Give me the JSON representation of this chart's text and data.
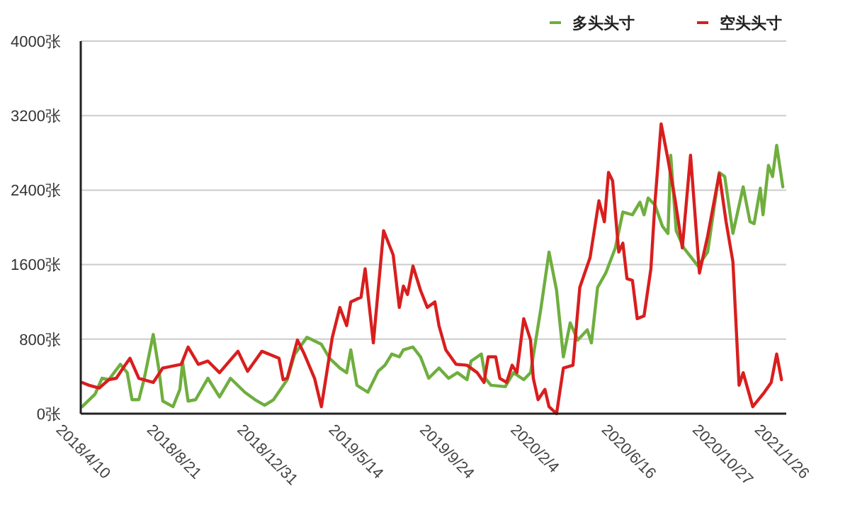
{
  "chart_data": {
    "type": "line",
    "legend": "top right",
    "grid": "y",
    "line_style": "solid",
    "marker": "none",
    "xlim": [
      "2018-04-10",
      "2021-02-05"
    ],
    "xticks": [
      {
        "value": "2018-04-10",
        "label": "2018/4/10"
      },
      {
        "value": "2018-08-21",
        "label": "2018/8/21"
      },
      {
        "value": "2018-12-31",
        "label": "2018/12/31"
      },
      {
        "value": "2019-05-14",
        "label": "2019/5/14"
      },
      {
        "value": "2019-09-24",
        "label": "2019/9/24"
      },
      {
        "value": "2020-02-04",
        "label": "2020/2/4"
      },
      {
        "value": "2020-06-16",
        "label": "2020/6/16"
      },
      {
        "value": "2020-10-27",
        "label": "2020/10/27"
      },
      {
        "value": "2021-01-26",
        "label": "2021/1/26"
      }
    ],
    "ylim": [
      0,
      4000
    ],
    "yticks": [
      {
        "value": 0,
        "label": "0张"
      },
      {
        "value": 800,
        "label": "800张"
      },
      {
        "value": 1600,
        "label": "1600张"
      },
      {
        "value": 2400,
        "label": "2400张"
      },
      {
        "value": 3200,
        "label": "3200张"
      },
      {
        "value": 4000,
        "label": "4000张"
      }
    ],
    "series": [
      {
        "name": "多头头寸",
        "color": "#6fae3f",
        "x": [
          "2018-04-12",
          "2018-05-01",
          "2018-05-11",
          "2018-05-21",
          "2018-06-07",
          "2018-06-17",
          "2018-06-24",
          "2018-07-04",
          "2018-07-12",
          "2018-07-25",
          "2018-08-02",
          "2018-08-08",
          "2018-08-23",
          "2018-09-02",
          "2018-09-06",
          "2018-09-14",
          "2018-09-25",
          "2018-10-13",
          "2018-10-30",
          "2018-11-15",
          "2018-12-06",
          "2018-12-21",
          "2019-01-04",
          "2019-01-17",
          "2019-02-06",
          "2019-02-17",
          "2019-03-07",
          "2019-03-28",
          "2019-04-09",
          "2019-04-24",
          "2019-05-04",
          "2019-05-10",
          "2019-05-19",
          "2019-06-04",
          "2019-06-19",
          "2019-06-29",
          "2019-07-09",
          "2019-07-20",
          "2019-07-26",
          "2019-08-09",
          "2019-08-20",
          "2019-09-01",
          "2019-09-16",
          "2019-09-30",
          "2019-10-13",
          "2019-10-27",
          "2019-11-02",
          "2019-11-17",
          "2019-11-23",
          "2019-12-01",
          "2019-12-22",
          "2020-01-03",
          "2020-01-18",
          "2020-01-28",
          "2020-02-12",
          "2020-02-24",
          "2020-03-06",
          "2020-03-16",
          "2020-03-26",
          "2020-04-06",
          "2020-04-20",
          "2020-04-26",
          "2020-05-05",
          "2020-05-17",
          "2020-05-31",
          "2020-06-11",
          "2020-06-25",
          "2020-07-06",
          "2020-07-12",
          "2020-07-18",
          "2020-07-28",
          "2020-08-08",
          "2020-08-16",
          "2020-08-20",
          "2020-08-28",
          "2020-09-08",
          "2020-09-29",
          "2020-10-13",
          "2020-10-30",
          "2020-11-07",
          "2020-11-19",
          "2020-12-04",
          "2020-12-14",
          "2020-12-20",
          "2020-12-29",
          "2021-01-02",
          "2021-01-10",
          "2021-01-16",
          "2021-01-22",
          "2021-01-31"
        ],
        "values": [
          75,
          210,
          380,
          365,
          530,
          440,
          150,
          150,
          380,
          850,
          490,
          135,
          75,
          260,
          550,
          135,
          150,
          380,
          180,
          380,
          230,
          150,
          90,
          150,
          365,
          640,
          820,
          745,
          595,
          490,
          440,
          685,
          305,
          230,
          455,
          520,
          640,
          610,
          685,
          715,
          610,
          380,
          490,
          380,
          440,
          365,
          565,
          640,
          380,
          305,
          290,
          440,
          365,
          440,
          1125,
          1735,
          1325,
          610,
          975,
          790,
          900,
          760,
          1355,
          1510,
          1780,
          2165,
          2135,
          2270,
          2135,
          2315,
          2240,
          2010,
          1935,
          2775,
          1965,
          1780,
          1585,
          1735,
          2590,
          2545,
          1935,
          2435,
          2060,
          2040,
          2420,
          2135,
          2665,
          2545,
          2880,
          2435
        ]
      },
      {
        "name": "空头头寸",
        "color": "#d91e1e",
        "x": [
          "2018-04-12",
          "2018-04-22",
          "2018-05-07",
          "2018-05-21",
          "2018-06-01",
          "2018-06-11",
          "2018-06-21",
          "2018-07-04",
          "2018-07-25",
          "2018-08-08",
          "2018-09-04",
          "2018-09-14",
          "2018-09-29",
          "2018-10-13",
          "2018-10-30",
          "2018-11-26",
          "2018-12-10",
          "2018-12-31",
          "2019-01-25",
          "2019-01-31",
          "2019-02-06",
          "2019-02-21",
          "2019-03-03",
          "2019-03-18",
          "2019-03-28",
          "2019-04-13",
          "2019-04-24",
          "2019-05-04",
          "2019-05-10",
          "2019-05-25",
          "2019-05-31",
          "2019-06-12",
          "2019-06-27",
          "2019-07-11",
          "2019-07-20",
          "2019-07-26",
          "2019-08-01",
          "2019-08-09",
          "2019-08-20",
          "2019-08-30",
          "2019-09-10",
          "2019-09-16",
          "2019-09-26",
          "2019-10-11",
          "2019-10-27",
          "2019-11-11",
          "2019-11-21",
          "2019-11-27",
          "2019-12-08",
          "2019-12-14",
          "2019-12-24",
          "2020-01-01",
          "2020-01-08",
          "2020-01-18",
          "2020-01-28",
          "2020-02-01",
          "2020-02-08",
          "2020-02-18",
          "2020-02-24",
          "2020-03-06",
          "2020-03-16",
          "2020-03-30",
          "2020-04-09",
          "2020-04-24",
          "2020-05-07",
          "2020-05-15",
          "2020-05-21",
          "2020-05-27",
          "2020-06-05",
          "2020-06-11",
          "2020-06-17",
          "2020-06-25",
          "2020-07-02",
          "2020-07-12",
          "2020-07-22",
          "2020-07-28",
          "2020-08-06",
          "2020-08-16",
          "2020-08-26",
          "2020-09-06",
          "2020-09-18",
          "2020-10-01",
          "2020-10-13",
          "2020-10-30",
          "2020-11-09",
          "2020-11-19",
          "2020-11-28",
          "2020-12-04",
          "2020-12-18",
          "2021-01-04",
          "2021-01-14",
          "2021-01-22",
          "2021-01-29"
        ],
        "values": [
          335,
          305,
          275,
          365,
          380,
          490,
          595,
          380,
          335,
          490,
          530,
          715,
          530,
          565,
          440,
          670,
          455,
          670,
          595,
          365,
          380,
          790,
          640,
          380,
          75,
          820,
          1140,
          945,
          1200,
          1250,
          1555,
          760,
          1965,
          1705,
          1140,
          1370,
          1280,
          1585,
          1325,
          1140,
          1200,
          945,
          685,
          530,
          520,
          440,
          335,
          610,
          610,
          380,
          335,
          520,
          440,
          1020,
          790,
          380,
          150,
          260,
          75,
          0,
          490,
          520,
          1355,
          1675,
          2285,
          2060,
          2590,
          2500,
          1735,
          1830,
          1450,
          1430,
          1020,
          1050,
          1555,
          2270,
          3110,
          2730,
          2315,
          1780,
          2775,
          1510,
          1905,
          2575,
          2060,
          1630,
          305,
          440,
          75,
          230,
          335,
          640,
          365
        ]
      }
    ]
  }
}
